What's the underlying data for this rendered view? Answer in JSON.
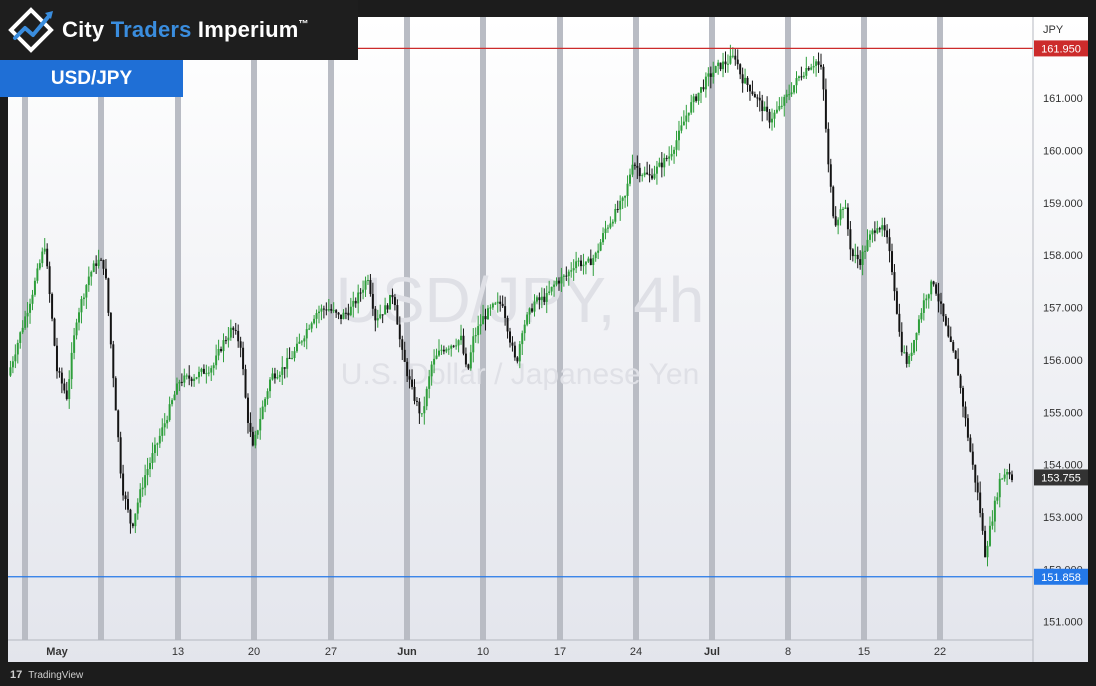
{
  "brand": {
    "name_part1": "City ",
    "name_part2": "Traders",
    "name_part3": " Imperium",
    "trademark": "™"
  },
  "symbol_label": "USD/JPY",
  "footer": {
    "tv_logo_glyph": "17",
    "provider": "TradingView"
  },
  "colors": {
    "resistance": "#cc2b2b",
    "support": "#2478e8",
    "candle_up": "#2e9e3b",
    "candle_down": "#141414",
    "session_band": "#b9bcc4"
  },
  "chart_data": {
    "type": "candlestick",
    "timeframe": "4h",
    "watermark_title": "USD/JPY, 4h",
    "watermark_subtitle": "U.S. Dollar / Japanese Yen",
    "currency_label": "JPY",
    "y_range": [
      150.65,
      162.55
    ],
    "y_ticks": [
      151.0,
      152.0,
      153.0,
      154.0,
      155.0,
      156.0,
      157.0,
      158.0,
      159.0,
      160.0,
      161.0
    ],
    "x_ticks": [
      "May",
      "13",
      "20",
      "27",
      "Jun",
      "10",
      "17",
      "24",
      "Jul",
      "8",
      "15",
      "22"
    ],
    "levels": [
      {
        "name": "resistance",
        "value": 161.95,
        "label": "161.950"
      },
      {
        "name": "support",
        "value": 151.858,
        "label": "151.858"
      }
    ],
    "last_price": {
      "value": 153.755,
      "label": "153.755"
    },
    "price_path": [
      {
        "x": 0.0,
        "p": 155.7
      },
      {
        "x": 2.0,
        "p": 157.3
      },
      {
        "x": 3.0,
        "p": 158.2
      },
      {
        "x": 4.0,
        "p": 155.8
      },
      {
        "x": 4.8,
        "p": 155.3
      },
      {
        "x": 5.6,
        "p": 156.8
      },
      {
        "x": 6.6,
        "p": 157.6
      },
      {
        "x": 7.3,
        "p": 157.9
      },
      {
        "x": 7.9,
        "p": 157.8
      },
      {
        "x": 8.5,
        "p": 156.0
      },
      {
        "x": 9.3,
        "p": 153.6
      },
      {
        "x": 10.1,
        "p": 152.8
      },
      {
        "x": 10.5,
        "p": 153.2
      },
      {
        "x": 11.2,
        "p": 153.8
      },
      {
        "x": 12.5,
        "p": 154.6
      },
      {
        "x": 14.0,
        "p": 155.6
      },
      {
        "x": 15.4,
        "p": 155.7
      },
      {
        "x": 16.8,
        "p": 155.9
      },
      {
        "x": 17.5,
        "p": 156.3
      },
      {
        "x": 18.3,
        "p": 156.6
      },
      {
        "x": 19.0,
        "p": 156.3
      },
      {
        "x": 19.5,
        "p": 155.0
      },
      {
        "x": 20.0,
        "p": 154.3
      },
      {
        "x": 20.7,
        "p": 155.0
      },
      {
        "x": 21.5,
        "p": 155.7
      },
      {
        "x": 22.3,
        "p": 155.8
      },
      {
        "x": 23.3,
        "p": 156.1
      },
      {
        "x": 24.0,
        "p": 156.4
      },
      {
        "x": 25.1,
        "p": 156.9
      },
      {
        "x": 26.1,
        "p": 157.0
      },
      {
        "x": 27.1,
        "p": 156.8
      },
      {
        "x": 28.1,
        "p": 157.0
      },
      {
        "x": 28.8,
        "p": 157.3
      },
      {
        "x": 29.4,
        "p": 157.6
      },
      {
        "x": 30.0,
        "p": 156.8
      },
      {
        "x": 30.9,
        "p": 157.0
      },
      {
        "x": 31.5,
        "p": 157.3
      },
      {
        "x": 32.1,
        "p": 156.2
      },
      {
        "x": 33.0,
        "p": 155.4
      },
      {
        "x": 33.8,
        "p": 154.9
      },
      {
        "x": 34.6,
        "p": 155.9
      },
      {
        "x": 35.4,
        "p": 156.2
      },
      {
        "x": 36.2,
        "p": 156.3
      },
      {
        "x": 37.0,
        "p": 156.4
      },
      {
        "x": 37.5,
        "p": 155.7
      },
      {
        "x": 38.0,
        "p": 156.4
      },
      {
        "x": 38.8,
        "p": 156.8
      },
      {
        "x": 39.6,
        "p": 157.0
      },
      {
        "x": 40.4,
        "p": 157.1
      },
      {
        "x": 41.0,
        "p": 156.4
      },
      {
        "x": 41.5,
        "p": 155.9
      },
      {
        "x": 42.0,
        "p": 156.6
      },
      {
        "x": 43.0,
        "p": 157.1
      },
      {
        "x": 44.0,
        "p": 157.2
      },
      {
        "x": 44.8,
        "p": 157.5
      },
      {
        "x": 45.6,
        "p": 157.6
      },
      {
        "x": 46.4,
        "p": 157.9
      },
      {
        "x": 47.2,
        "p": 157.8
      },
      {
        "x": 48.0,
        "p": 158.0
      },
      {
        "x": 48.8,
        "p": 158.5
      },
      {
        "x": 49.6,
        "p": 158.8
      },
      {
        "x": 50.4,
        "p": 159.1
      },
      {
        "x": 51.0,
        "p": 159.8
      },
      {
        "x": 51.6,
        "p": 159.6
      },
      {
        "x": 52.4,
        "p": 159.5
      },
      {
        "x": 53.2,
        "p": 159.7
      },
      {
        "x": 54.0,
        "p": 159.9
      },
      {
        "x": 54.8,
        "p": 160.3
      },
      {
        "x": 55.6,
        "p": 160.8
      },
      {
        "x": 56.4,
        "p": 161.1
      },
      {
        "x": 57.2,
        "p": 161.4
      },
      {
        "x": 58.0,
        "p": 161.6
      },
      {
        "x": 58.8,
        "p": 161.7
      },
      {
        "x": 59.4,
        "p": 161.8
      },
      {
        "x": 59.9,
        "p": 161.4
      },
      {
        "x": 60.6,
        "p": 161.2
      },
      {
        "x": 61.4,
        "p": 160.9
      },
      {
        "x": 62.2,
        "p": 160.6
      },
      {
        "x": 63.0,
        "p": 160.8
      },
      {
        "x": 63.8,
        "p": 161.1
      },
      {
        "x": 64.6,
        "p": 161.4
      },
      {
        "x": 65.3,
        "p": 161.6
      },
      {
        "x": 66.0,
        "p": 161.7
      },
      {
        "x": 66.5,
        "p": 161.5
      },
      {
        "x": 67.0,
        "p": 159.7
      },
      {
        "x": 67.5,
        "p": 158.6
      },
      {
        "x": 68.3,
        "p": 159.0
      },
      {
        "x": 68.9,
        "p": 158.0
      },
      {
        "x": 69.6,
        "p": 157.9
      },
      {
        "x": 70.3,
        "p": 158.3
      },
      {
        "x": 71.0,
        "p": 158.6
      },
      {
        "x": 71.7,
        "p": 158.4
      },
      {
        "x": 72.3,
        "p": 157.6
      },
      {
        "x": 72.9,
        "p": 156.3
      },
      {
        "x": 73.5,
        "p": 155.9
      },
      {
        "x": 74.2,
        "p": 156.6
      },
      {
        "x": 74.9,
        "p": 157.2
      },
      {
        "x": 75.6,
        "p": 157.5
      },
      {
        "x": 76.3,
        "p": 156.9
      },
      {
        "x": 76.8,
        "p": 156.4
      },
      {
        "x": 77.5,
        "p": 155.9
      },
      {
        "x": 78.1,
        "p": 155.0
      },
      {
        "x": 78.7,
        "p": 154.1
      },
      {
        "x": 79.3,
        "p": 153.3
      },
      {
        "x": 79.8,
        "p": 152.3
      },
      {
        "x": 80.4,
        "p": 153.0
      },
      {
        "x": 81.0,
        "p": 153.7
      },
      {
        "x": 81.6,
        "p": 153.9
      },
      {
        "x": 82.0,
        "p": 153.755
      }
    ]
  }
}
